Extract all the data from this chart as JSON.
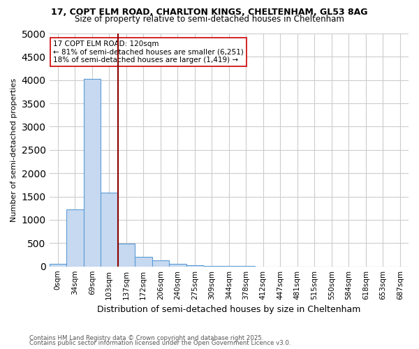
{
  "title1": "17, COPT ELM ROAD, CHARLTON KINGS, CHELTENHAM, GL53 8AG",
  "title2": "Size of property relative to semi-detached houses in Cheltenham",
  "xlabel": "Distribution of semi-detached houses by size in Cheltenham",
  "ylabel": "Number of semi-detached properties",
  "footnote1": "Contains HM Land Registry data © Crown copyright and database right 2025.",
  "footnote2": "Contains public sector information licensed under the Open Government Licence v3.0.",
  "bin_labels": [
    "0sqm",
    "34sqm",
    "69sqm",
    "103sqm",
    "137sqm",
    "172sqm",
    "206sqm",
    "240sqm",
    "275sqm",
    "309sqm",
    "344sqm",
    "378sqm",
    "412sqm",
    "447sqm",
    "481sqm",
    "515sqm",
    "550sqm",
    "584sqm",
    "618sqm",
    "653sqm",
    "687sqm"
  ],
  "bar_heights": [
    50,
    1230,
    4020,
    1580,
    490,
    200,
    130,
    60,
    30,
    15,
    5,
    3,
    2,
    1,
    0,
    0,
    0,
    0,
    0,
    0,
    0
  ],
  "bar_color": "#c6d9f0",
  "bar_edge_color": "#5b9bd5",
  "property_line_x": 3.53,
  "property_label": "17 COPT ELM ROAD: 120sqm",
  "pct_smaller": "81% of semi-detached houses are smaller (6,251)",
  "pct_larger": "18% of semi-detached houses are larger (1,419)",
  "annotation_box_color": "#ffffff",
  "annotation_box_edge": "#cc0000",
  "red_line_color": "#8b0000",
  "ylim": [
    0,
    5000
  ],
  "yticks": [
    0,
    500,
    1000,
    1500,
    2000,
    2500,
    3000,
    3500,
    4000,
    4500,
    5000
  ],
  "bg_color": "#ffffff",
  "grid_color": "#cccccc"
}
